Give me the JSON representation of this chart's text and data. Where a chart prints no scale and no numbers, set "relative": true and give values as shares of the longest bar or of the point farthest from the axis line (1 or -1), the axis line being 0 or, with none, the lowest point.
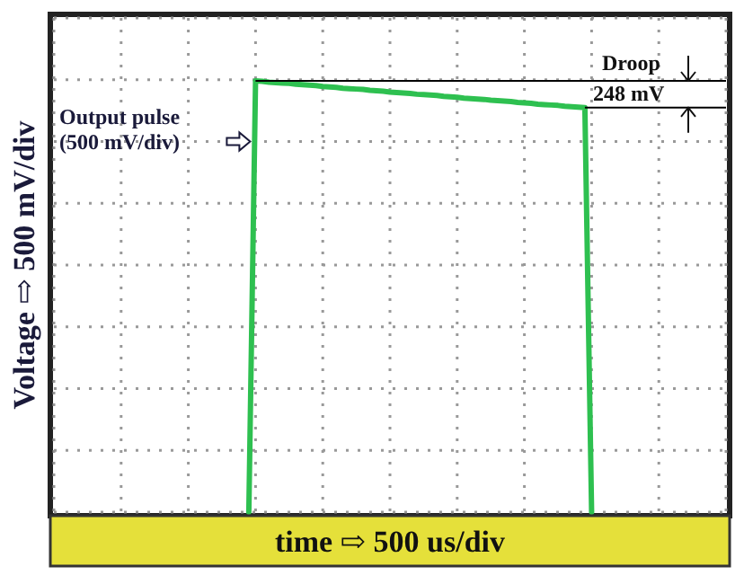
{
  "chart_data": {
    "type": "line",
    "relative": true,
    "xlabel": "time ⇨ 500 us/div",
    "ylabel": "Voltage ⇨ 500 mV/div",
    "categories": [
      null,
      null,
      null,
      null,
      null,
      null,
      null,
      null,
      null,
      null,
      null,
      null,
      null,
      null,
      null,
      null,
      null,
      null,
      null,
      null,
      null,
      null,
      null,
      null,
      null,
      null,
      null,
      null,
      null,
      null,
      null,
      null,
      null,
      null,
      null,
      null,
      null,
      null,
      null,
      null,
      null,
      null,
      null,
      null,
      null,
      null,
      null,
      null,
      null,
      null,
      null,
      null,
      null,
      null,
      null,
      null,
      null,
      null,
      null,
      null,
      null,
      null,
      null,
      null,
      null,
      null,
      null,
      null,
      null,
      null,
      null,
      null,
      null,
      null,
      null,
      null,
      null,
      null,
      null,
      null,
      null,
      null,
      null,
      null,
      null,
      null,
      null,
      null,
      null,
      null,
      null,
      null,
      null,
      null,
      null,
      null,
      null,
      null,
      null,
      null,
      null
    ],
    "series": [
      {
        "color": "#2ec050",
        "values": [
          null,
          null,
          null,
          null,
          null,
          null,
          null,
          null,
          null,
          null,
          null,
          null,
          null,
          null,
          null,
          null,
          null,
          null,
          null,
          null,
          null,
          null,
          null,
          null,
          null,
          null,
          null,
          null,
          null,
          0,
          1.0,
          0.999,
          0.997,
          0.996,
          0.995,
          0.994,
          0.992,
          0.991,
          0.99,
          0.989,
          0.987,
          0.986,
          0.985,
          0.983,
          0.982,
          0.981,
          0.98,
          0.978,
          0.977,
          0.976,
          0.974,
          0.973,
          0.972,
          0.971,
          0.969,
          0.968,
          0.967,
          0.966,
          0.964,
          0.963,
          0.962,
          0.96,
          0.959,
          0.958,
          0.957,
          0.955,
          0.954,
          0.953,
          0.952,
          0.95,
          0.949,
          0.948,
          0.946,
          0.945,
          0.944,
          0.943,
          0.941,
          0.94,
          0.939,
          0.938,
          0,
          null,
          null,
          null,
          null,
          null,
          null,
          null,
          null,
          null,
          null,
          null,
          null,
          null,
          null,
          null,
          null,
          null,
          null,
          null,
          null
        ]
      }
    ],
    "grid": true,
    "marker": "none",
    "line_style": "solid",
    "ref_lines": [
      {
        "axis": "y",
        "value": 1.0,
        "label": "Droop",
        "color": "#000000"
      },
      {
        "axis": "y",
        "value": 0.938,
        "label": "248 mV",
        "color": "#000000"
      }
    ],
    "annotations": [
      "Output pulse\n(500 mV/div)"
    ]
  }
}
